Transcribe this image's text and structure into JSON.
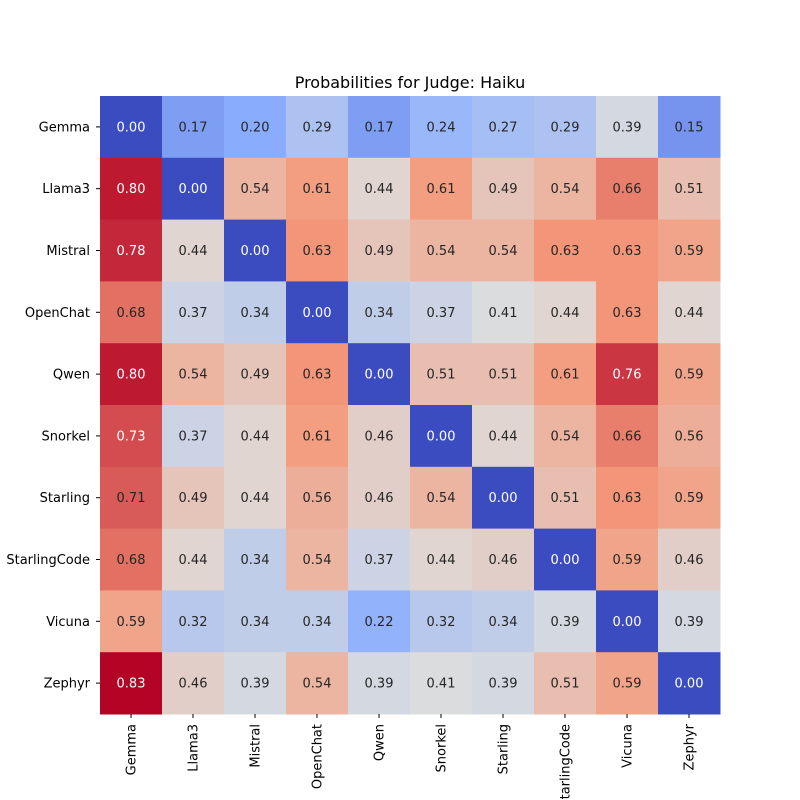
{
  "chart_data": {
    "type": "heatmap",
    "title": "Probabilities for Judge: Haiku",
    "xlabel": "",
    "ylabel": "",
    "rows": [
      "Gemma",
      "Llama3",
      "Mistral",
      "OpenChat",
      "Qwen",
      "Snorkel",
      "Starling",
      "StarlingCode",
      "Vicuna",
      "Zephyr"
    ],
    "columns": [
      "Gemma",
      "Llama3",
      "Mistral",
      "OpenChat",
      "Qwen",
      "Snorkel",
      "Starling",
      "StarlingCode",
      "Vicuna",
      "Zephyr"
    ],
    "values": [
      [
        0.0,
        0.17,
        0.2,
        0.29,
        0.17,
        0.24,
        0.27,
        0.29,
        0.39,
        0.15
      ],
      [
        0.8,
        0.0,
        0.54,
        0.61,
        0.44,
        0.61,
        0.49,
        0.54,
        0.66,
        0.51
      ],
      [
        0.78,
        0.44,
        0.0,
        0.63,
        0.49,
        0.54,
        0.54,
        0.63,
        0.63,
        0.59
      ],
      [
        0.68,
        0.37,
        0.34,
        0.0,
        0.34,
        0.37,
        0.41,
        0.44,
        0.63,
        0.44
      ],
      [
        0.8,
        0.54,
        0.49,
        0.63,
        0.0,
        0.51,
        0.51,
        0.61,
        0.76,
        0.59
      ],
      [
        0.73,
        0.37,
        0.44,
        0.61,
        0.46,
        0.0,
        0.44,
        0.54,
        0.66,
        0.56
      ],
      [
        0.71,
        0.49,
        0.44,
        0.56,
        0.46,
        0.54,
        0.0,
        0.51,
        0.63,
        0.59
      ],
      [
        0.68,
        0.44,
        0.34,
        0.54,
        0.37,
        0.44,
        0.46,
        0.0,
        0.59,
        0.46
      ],
      [
        0.59,
        0.32,
        0.34,
        0.34,
        0.22,
        0.32,
        0.34,
        0.39,
        0.0,
        0.39
      ],
      [
        0.83,
        0.46,
        0.39,
        0.54,
        0.39,
        0.41,
        0.39,
        0.51,
        0.59,
        0.0
      ]
    ],
    "value_range": [
      0.0,
      0.83
    ],
    "colormap": "coolwarm",
    "colors": {
      "low": "#3b4cc0",
      "mid": "#dddddd",
      "high": "#b40426"
    },
    "annotate": true,
    "value_format": "2 decimals",
    "grid": false,
    "legend": "none"
  }
}
